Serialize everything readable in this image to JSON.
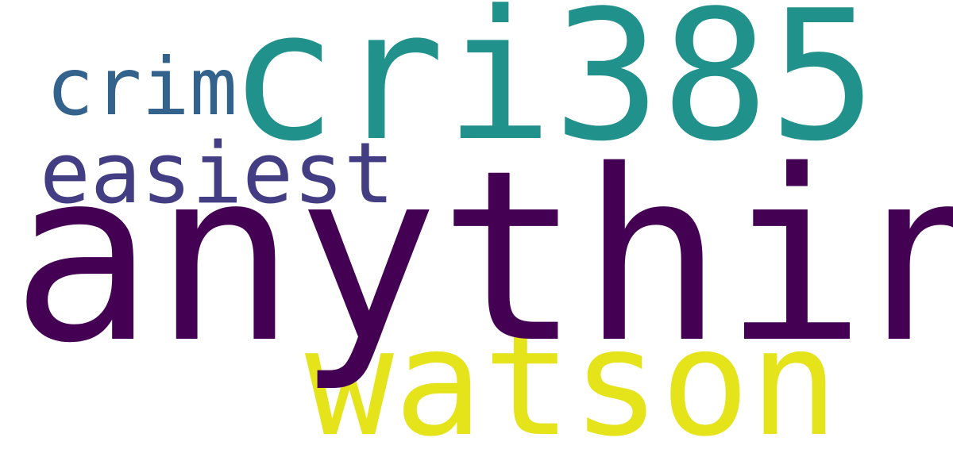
{
  "words": {
    "anything": {
      "text": "anything",
      "color": "#440154"
    },
    "cri385": {
      "text": "cri385",
      "color": "#21918c"
    },
    "watson": {
      "text": "watson",
      "color": "#e5e31a"
    },
    "easiest": {
      "text": "easiest",
      "color": "#433d84"
    },
    "crim": {
      "text": "crim",
      "color": "#33638d"
    }
  },
  "background": "#ffffff"
}
